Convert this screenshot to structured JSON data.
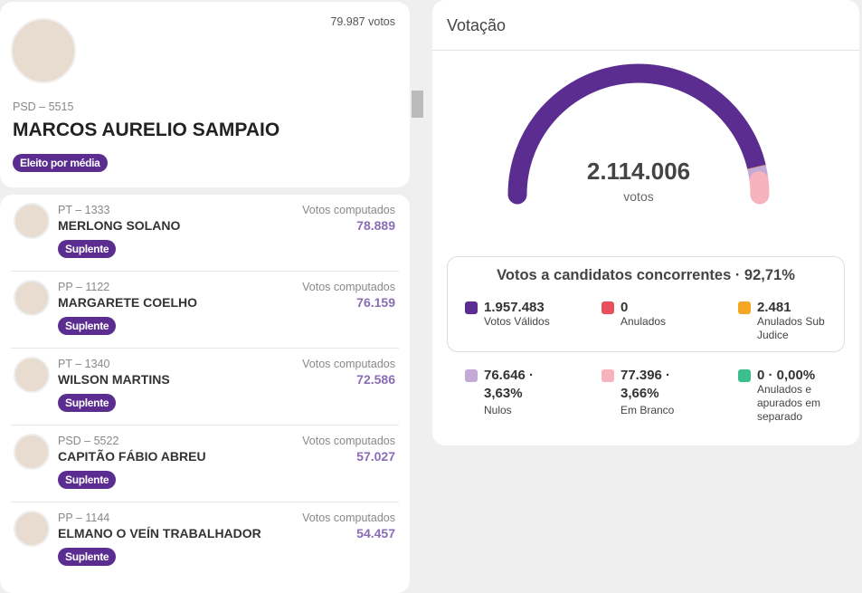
{
  "winner": {
    "votes": "79.987 votos",
    "party": "PSD – 5515",
    "name": "MARCOS AURELIO SAMPAIO",
    "badge": "Eleito por média"
  },
  "candidates": [
    {
      "party": "PT – 1333",
      "name": "MERLONG SOLANO",
      "votes_label": "Votos computados",
      "votes": "78.889",
      "badge": "Suplente"
    },
    {
      "party": "PP – 1122",
      "name": "MARGARETE COELHO",
      "votes_label": "Votos computados",
      "votes": "76.159",
      "badge": "Suplente"
    },
    {
      "party": "PT – 1340",
      "name": "WILSON MARTINS",
      "votes_label": "Votos computados",
      "votes": "72.586",
      "badge": "Suplente"
    },
    {
      "party": "PSD – 5522",
      "name": "CAPITÃO FÁBIO ABREU",
      "votes_label": "Votos computados",
      "votes": "57.027",
      "badge": "Suplente"
    },
    {
      "party": "PP – 1144",
      "name": "ELMANO O VEÍN TRABALHADOR",
      "votes_label": "Votos computados",
      "votes": "54.457",
      "badge": "Suplente"
    }
  ],
  "voting": {
    "title": "Votação",
    "total": "2.114.006",
    "unit": "votos",
    "box_title": "Votos a candidatos concorrentes · 92,71%",
    "items": [
      {
        "label": "1.957.483",
        "value": 1957483,
        "name": "Votos Válidos",
        "color": "#5c2d91"
      },
      {
        "label": "0",
        "value": 0,
        "name": "Anulados",
        "color": "#e8505b"
      },
      {
        "label": "2.481",
        "value": 2481,
        "name": "Anulados Sub Judice",
        "color": "#f5a623"
      },
      {
        "label": "76.646 · 3,63%",
        "value": 76646,
        "name": "Nulos",
        "color": "#c3a9d6"
      },
      {
        "label": "77.396 · 3,66%",
        "value": 77396,
        "name": "Em Branco",
        "color": "#f7b3bd"
      },
      {
        "label": "0 · 0,00%",
        "value": 0,
        "name": "Anulados e apurados em separado",
        "color": "#3cbf8f"
      }
    ]
  }
}
